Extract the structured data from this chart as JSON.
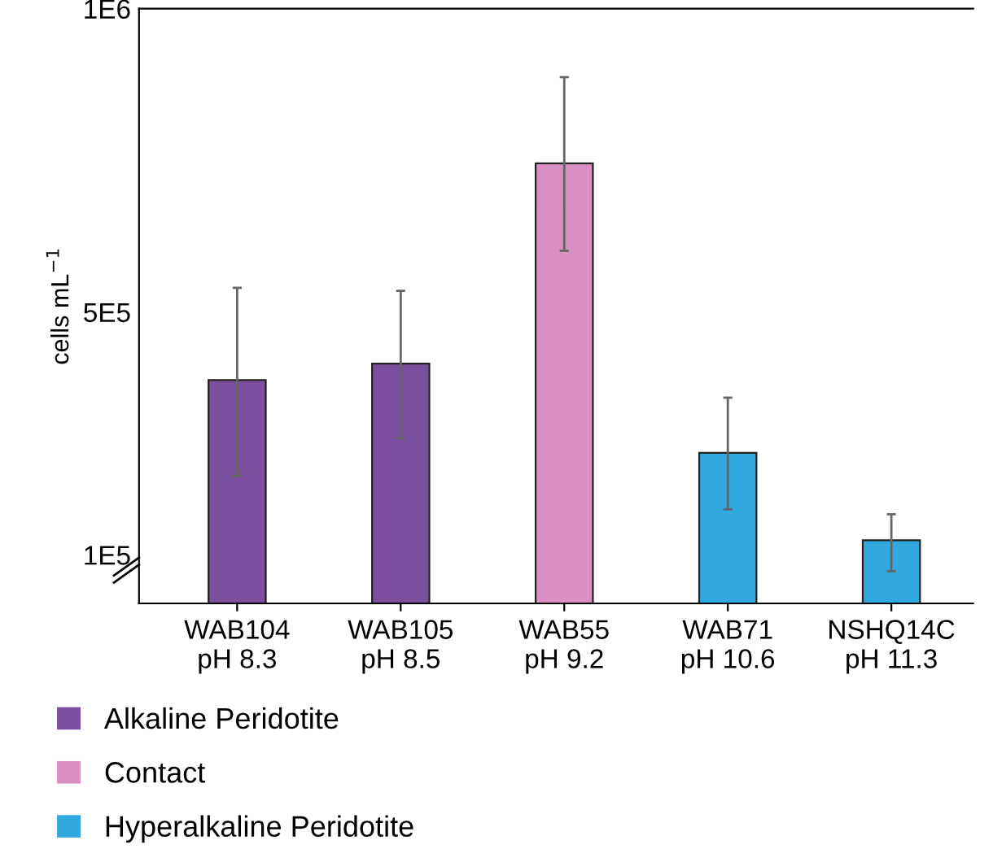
{
  "chart_data": {
    "type": "bar",
    "ylabel": "cells mL$^{−1}$",
    "categories": [
      "WAB104\npH 8.3",
      "WAB105\npH 8.5",
      "WAB55\npH 9.2",
      "WAB71\npH 10.6",
      "NSHQ14C\npH 11.3"
    ],
    "series": [
      {
        "name": "Alkaline Peridotite",
        "color": "#7b4f9d",
        "values": [
          388000,
          415000,
          null,
          null,
          null
        ],
        "errors": [
          [
            230000,
            540000
          ],
          [
            292000,
            535000
          ],
          null,
          null,
          null
        ]
      },
      {
        "name": "Contact",
        "color": "#d98fbf",
        "values": [
          null,
          null,
          745000,
          null,
          null
        ],
        "errors": [
          null,
          null,
          [
            601000,
            887000
          ],
          null,
          null
        ]
      },
      {
        "name": "Hyperalkaline Peridotite",
        "color": "#2fa9df",
        "values": [
          null,
          null,
          null,
          268000,
          124000
        ],
        "errors": [
          null,
          null,
          null,
          [
            175000,
            359000
          ],
          [
            73000,
            167000
          ]
        ]
      }
    ],
    "ylim": [
      20000,
      1000000
    ],
    "yticks": [
      {
        "value": 100000,
        "label": "1E5"
      },
      {
        "value": 500000,
        "label": "5E5"
      },
      {
        "value": 1000000,
        "label": "1E6"
      }
    ],
    "grid": false,
    "legend": "bottom"
  }
}
